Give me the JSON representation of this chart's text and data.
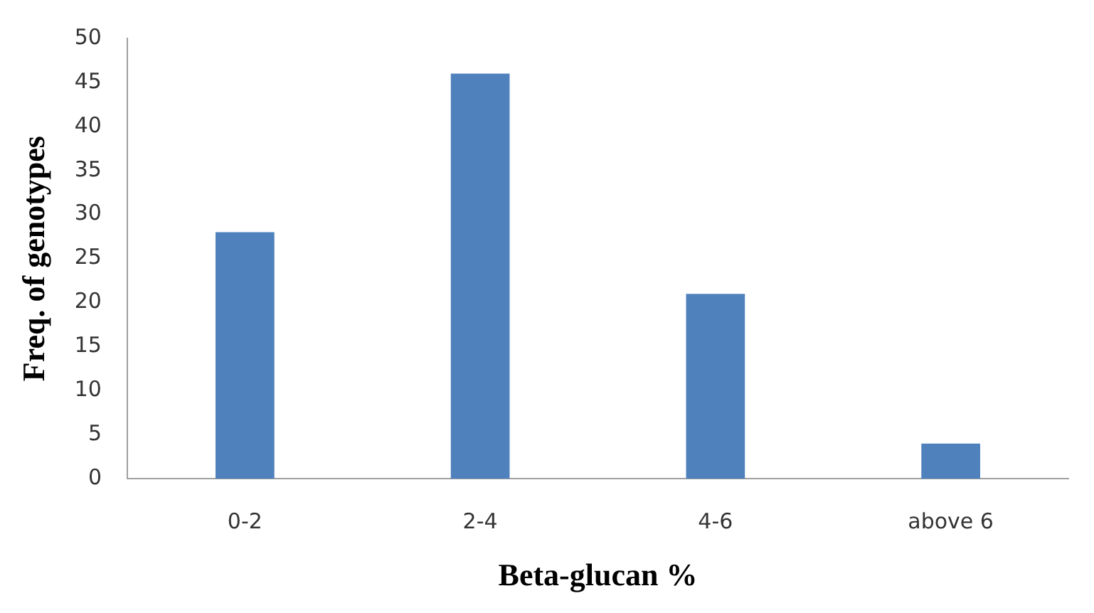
{
  "chart_data": {
    "type": "bar",
    "xlabel": "Beta-glucan %",
    "ylabel": "Freq. of genotypes",
    "categories": [
      "0-2",
      "2-4",
      "4-6",
      "above 6"
    ],
    "values": [
      28,
      46,
      21,
      4
    ],
    "color": "#4f81bd",
    "ylim": [
      0,
      50
    ],
    "yticks": [
      0,
      5,
      10,
      15,
      20,
      25,
      30,
      35,
      40,
      45,
      50
    ],
    "grid": false,
    "legend": false
  }
}
